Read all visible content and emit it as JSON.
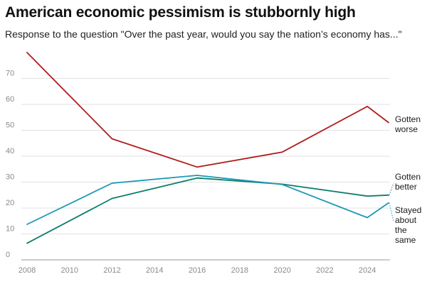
{
  "chart_data": {
    "type": "line",
    "title": "American economic pessimism is stubbornly high",
    "subtitle": "Response to the question \"Over the past year, would you say the nation’s economy has...\"",
    "xlabel": "",
    "ylabel": "",
    "xlim": [
      2008,
      2025
    ],
    "ylim": [
      0,
      80
    ],
    "x_ticks": [
      2008,
      2010,
      2012,
      2014,
      2016,
      2018,
      2020,
      2022,
      2024
    ],
    "y_ticks": [
      0,
      10,
      20,
      30,
      40,
      50,
      60,
      70
    ],
    "grid": "horizontal",
    "legend": "direct labels at right end of lines",
    "series": [
      {
        "name": "Gotten worse",
        "label_lines": [
          "Gotten",
          "worse"
        ],
        "color": "#b01c1c",
        "x": [
          2008,
          2012,
          2016,
          2020,
          2024,
          2025
        ],
        "values": [
          80,
          46.7,
          35.8,
          41.6,
          59.2,
          53
        ]
      },
      {
        "name": "Gotten better",
        "label_lines": [
          "Gotten",
          "better"
        ],
        "color": "#0e7f6a",
        "x": [
          2008,
          2012,
          2016,
          2020,
          2024,
          2025
        ],
        "values": [
          6.4,
          23.7,
          31.6,
          29.2,
          24.6,
          25
        ]
      },
      {
        "name": "Stayed about the same",
        "label_lines": [
          "Stayed",
          "about",
          "the",
          "same"
        ],
        "color": "#1b98b5",
        "x": [
          2008,
          2012,
          2016,
          2020,
          2024,
          2025
        ],
        "values": [
          13.7,
          29.6,
          32.6,
          29.1,
          16.3,
          22
        ]
      }
    ]
  }
}
